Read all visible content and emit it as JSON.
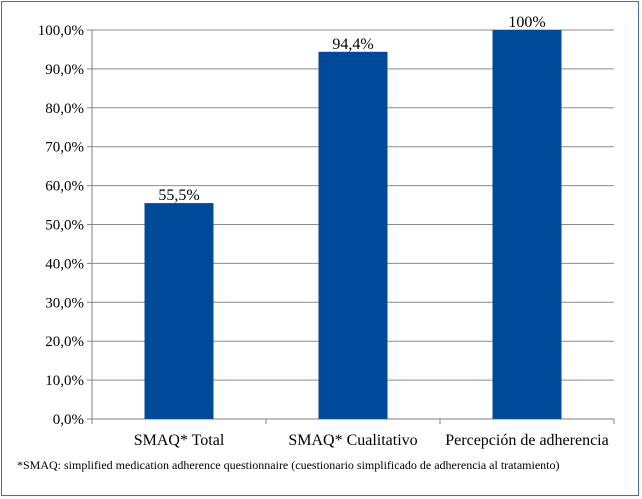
{
  "chart_data": {
    "type": "bar",
    "categories": [
      "SMAQ* Total",
      "SMAQ* Cualitativo",
      "Percepción de adherencia"
    ],
    "values": [
      55.5,
      94.4,
      100
    ],
    "data_labels": [
      "55,5%",
      "94,4%",
      "100%"
    ],
    "title": "",
    "xlabel": "",
    "ylabel": "",
    "ylim": [
      0,
      100
    ],
    "yticks": [
      0,
      10,
      20,
      30,
      40,
      50,
      60,
      70,
      80,
      90,
      100
    ],
    "ytick_labels": [
      "0,0%",
      "10,0%",
      "20,0%",
      "30,0%",
      "40,0%",
      "50,0%",
      "60,0%",
      "70,0%",
      "80,0%",
      "90,0%",
      "100,0%"
    ],
    "bar_color": "#004a9a",
    "grid": true,
    "legend": "none"
  },
  "footnote": "*SMAQ: simplified medication adherence questionnaire (cuestionario simplificado de adherencia al tratamiento)",
  "colors": {
    "frame": "#3f6fb5",
    "grid": "#8c8c8c",
    "axis": "#808080"
  }
}
